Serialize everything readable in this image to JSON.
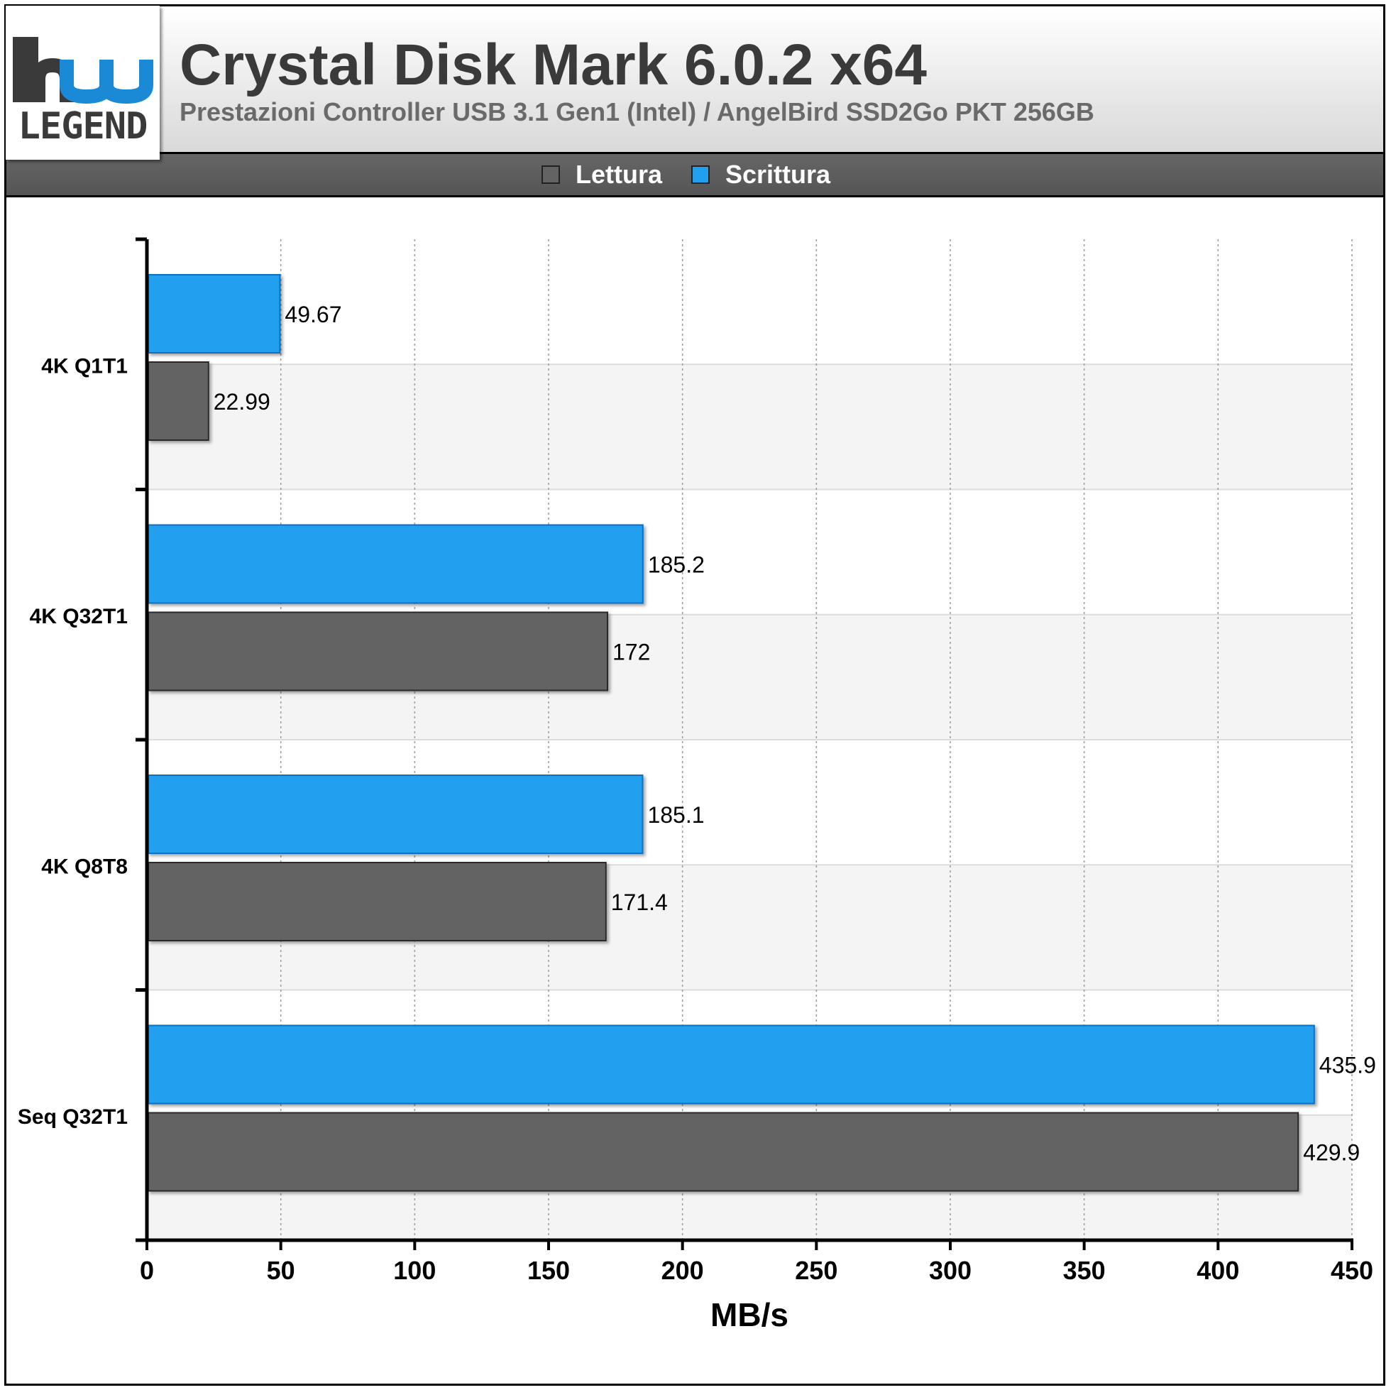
{
  "header": {
    "logo_text": "LEGEND",
    "title": "Crystal Disk Mark 6.0.2 x64",
    "subtitle": "Prestazioni Controller USB 3.1 Gen1 (Intel) / AngelBird SSD2Go PKT 256GB"
  },
  "colors": {
    "lettura": "#636363",
    "scrittura": "#229fef",
    "logo_blue": "#1a8ad6",
    "logo_gray": "#3a3a3a"
  },
  "chart_data": {
    "type": "bar",
    "orientation": "horizontal",
    "title": "Crystal Disk Mark 6.0.2 x64",
    "subtitle": "Prestazioni Controller USB 3.1 Gen1 (Intel) / AngelBird SSD2Go PKT 256GB",
    "categories": [
      "4K Q1T1",
      "4K Q32T1",
      "4K Q8T8",
      "Seq Q32T1"
    ],
    "series": [
      {
        "name": "Lettura",
        "values": [
          22.99,
          172,
          171.4,
          429.9
        ],
        "labels": [
          "22.99",
          "172",
          "171.4",
          "429.9"
        ]
      },
      {
        "name": "Scrittura",
        "values": [
          49.67,
          185.2,
          185.1,
          435.9
        ],
        "labels": [
          "49.67",
          "185.2",
          "185.1",
          "435.9"
        ]
      }
    ],
    "xlabel": "MB/s",
    "ylabel": "",
    "xlim": [
      0,
      450
    ],
    "xticks": [
      "0",
      "50",
      "100",
      "150",
      "200",
      "250",
      "300",
      "350",
      "400",
      "450"
    ],
    "grid": "vertical-dotted",
    "legend_position": "top-center"
  }
}
